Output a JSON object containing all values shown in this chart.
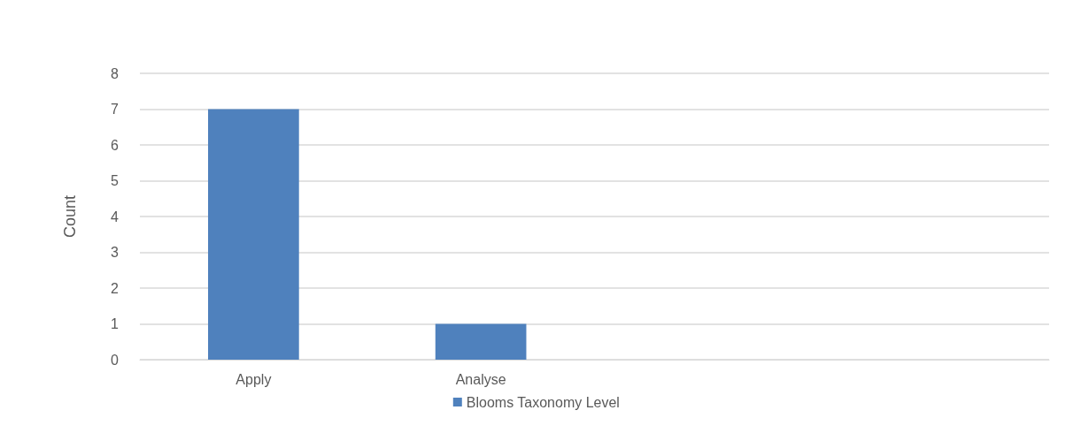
{
  "chart_data": {
    "type": "bar",
    "ylabel": "Count",
    "categories": [
      "Apply",
      "Analyse",
      null,
      null
    ],
    "series": [
      {
        "name": "Blooms Taxonomy Level",
        "color": "#4f81bd",
        "values": [
          7,
          1,
          null,
          null
        ]
      }
    ],
    "ylim": [
      0,
      8
    ],
    "yticks": [
      0,
      1,
      2,
      3,
      4,
      5,
      6,
      7,
      8
    ],
    "grid": "y",
    "legend": "bottom"
  }
}
